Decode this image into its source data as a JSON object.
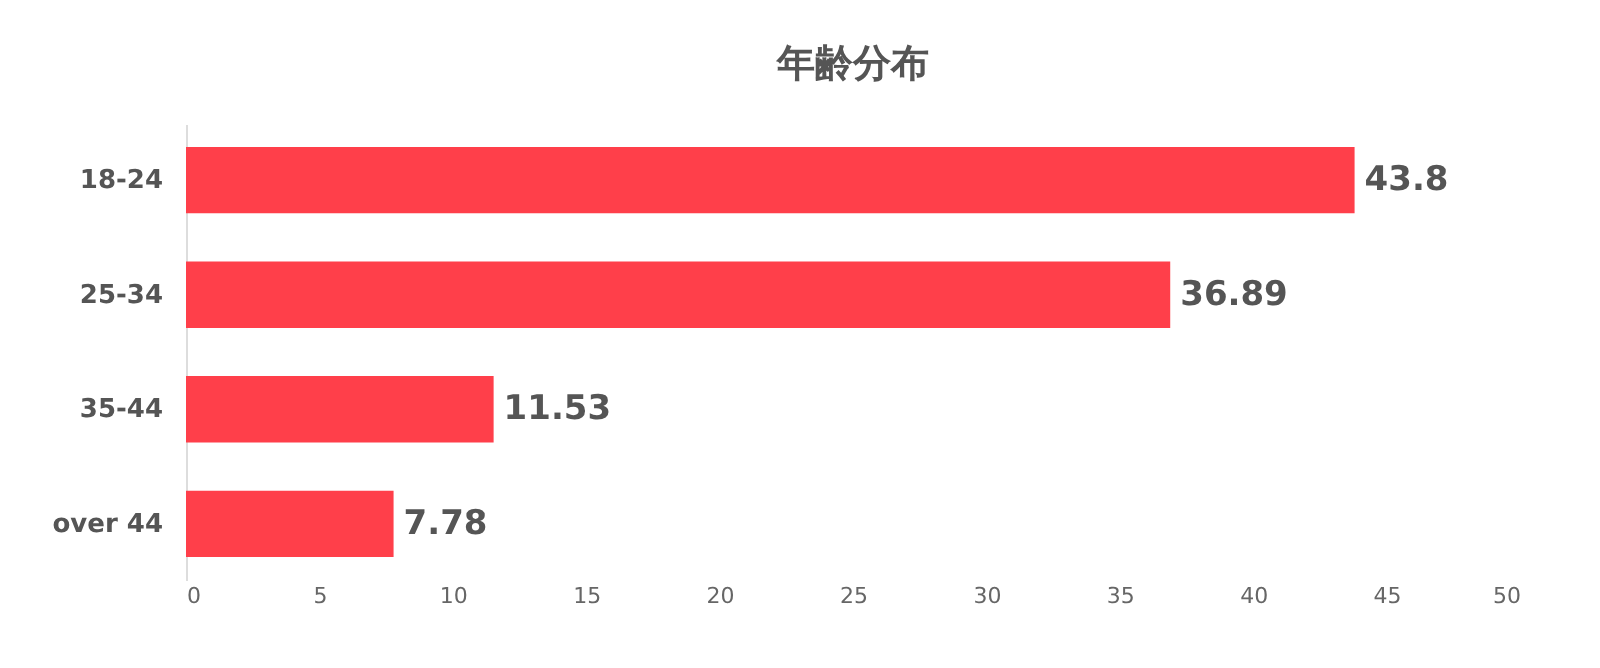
{
  "chart_data": {
    "type": "bar",
    "orientation": "horizontal",
    "title": "年齢分布",
    "categories": [
      "18-24",
      "25-34",
      "35-44",
      "over 44"
    ],
    "values": [
      43.8,
      36.89,
      11.53,
      7.78
    ],
    "color": "#ff3f4a",
    "xlim": [
      0,
      50
    ],
    "xticks": [
      0,
      5,
      10,
      15,
      20,
      25,
      30,
      35,
      40,
      45,
      50
    ],
    "grid": false,
    "data_labels": true
  }
}
